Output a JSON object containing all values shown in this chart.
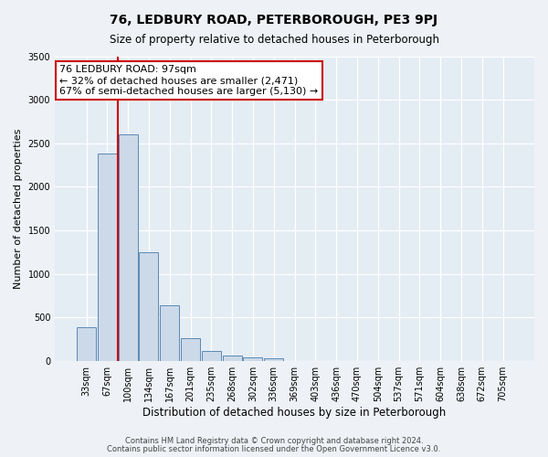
{
  "title": "76, LEDBURY ROAD, PETERBOROUGH, PE3 9PJ",
  "subtitle": "Size of property relative to detached houses in Peterborough",
  "xlabel": "Distribution of detached houses by size in Peterborough",
  "ylabel": "Number of detached properties",
  "bar_labels": [
    "33sqm",
    "67sqm",
    "100sqm",
    "134sqm",
    "167sqm",
    "201sqm",
    "235sqm",
    "268sqm",
    "302sqm",
    "336sqm",
    "369sqm",
    "403sqm",
    "436sqm",
    "470sqm",
    "504sqm",
    "537sqm",
    "571sqm",
    "604sqm",
    "638sqm",
    "672sqm",
    "705sqm"
  ],
  "bar_values": [
    390,
    2380,
    2600,
    1250,
    640,
    260,
    110,
    55,
    40,
    25,
    0,
    0,
    0,
    0,
    0,
    0,
    0,
    0,
    0,
    0,
    0
  ],
  "bar_color": "#ccd9e8",
  "bar_edge_color": "#5a8ab5",
  "vline_color": "#cc0000",
  "ylim": [
    0,
    3500
  ],
  "annotation_text": "76 LEDBURY ROAD: 97sqm\n← 32% of detached houses are smaller (2,471)\n67% of semi-detached houses are larger (5,130) →",
  "annotation_box_edgecolor": "#cc0000",
  "footnote1": "Contains HM Land Registry data © Crown copyright and database right 2024.",
  "footnote2": "Contains public sector information licensed under the Open Government Licence v3.0.",
  "bg_color": "#eef2f6",
  "plot_bg_color": "#e4ecf4"
}
